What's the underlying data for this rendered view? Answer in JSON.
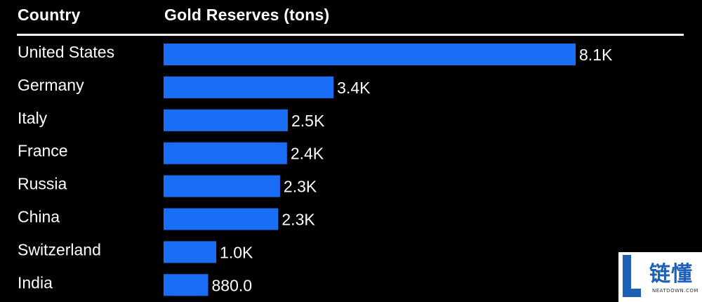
{
  "header": {
    "category_column": "Country",
    "value_column": "Gold Reserves (tons)"
  },
  "colors": {
    "background": "#000000",
    "bar": "#1a6ef5",
    "text": "#ffffff",
    "logo_blue": "#1e60b6"
  },
  "watermark": {
    "text": "链懂",
    "subtext": "NEATDOWN.COM"
  },
  "chart_data": {
    "type": "bar",
    "orientation": "horizontal",
    "categories": [
      "United States",
      "Germany",
      "Italy",
      "France",
      "Russia",
      "China",
      "Switzerland",
      "India"
    ],
    "values": [
      8133,
      3355,
      2452,
      2436,
      2299,
      2264,
      1040,
      880
    ],
    "value_labels": [
      "8.1K",
      "3.4K",
      "2.5K",
      "2.4K",
      "2.3K",
      "2.3K",
      "1.0K",
      "880.0"
    ],
    "title": "",
    "xlabel": "Gold Reserves (tons)",
    "ylabel": "Country",
    "xlim": [
      0,
      8133
    ],
    "grid": false,
    "legend": "none"
  }
}
